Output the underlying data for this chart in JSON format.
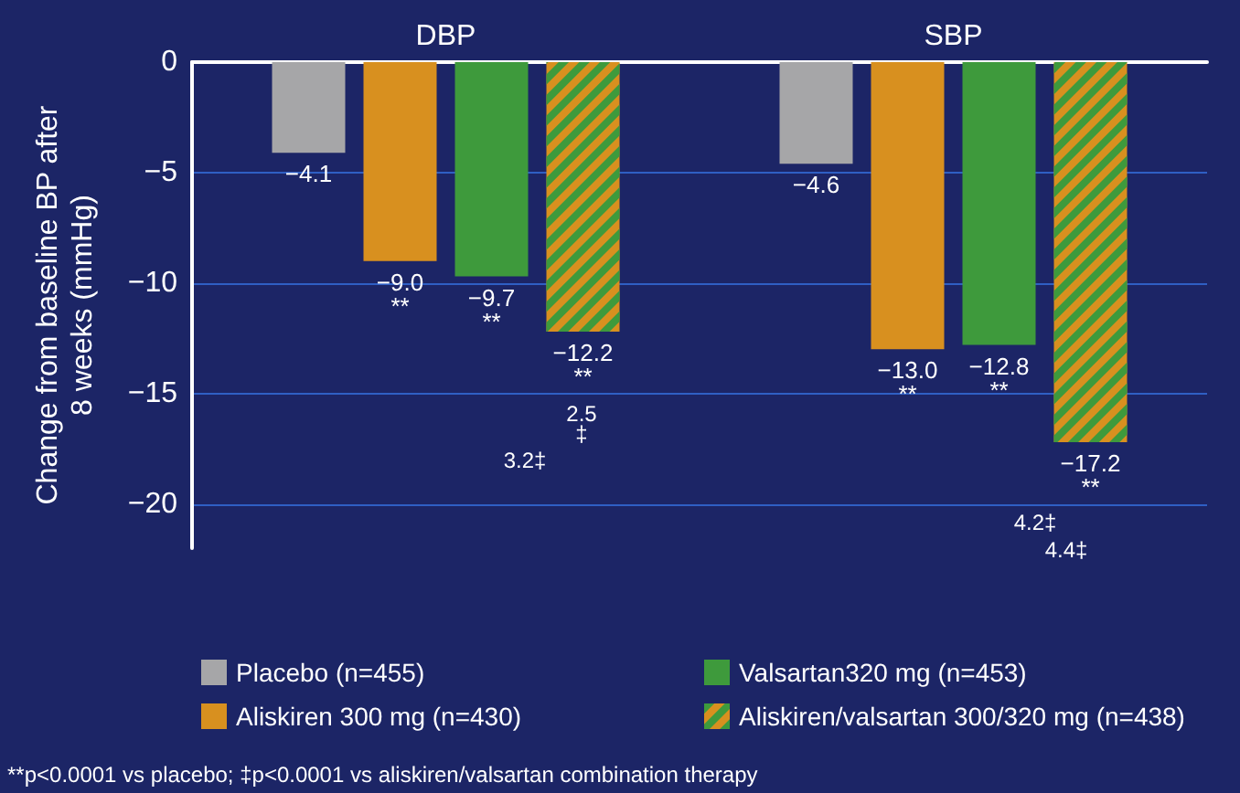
{
  "chart_data": {
    "type": "bar",
    "ylabel": "Change from baseline BP after\n8 weeks (mmHg)",
    "categories": [
      "DBP",
      "SBP"
    ],
    "series": [
      {
        "name": "Placebo (n=455)",
        "color": "#a6a6a8",
        "values": [
          -4.1,
          -4.6
        ],
        "value_labels": [
          "−4.1",
          "−4.6"
        ]
      },
      {
        "name": "Aliskiren 300 mg (n=430)",
        "color": "#d8901f",
        "values": [
          -9.0,
          -13.0
        ],
        "value_labels": [
          "−9.0\n**",
          "−13.0\n**"
        ]
      },
      {
        "name": "Valsartan320 mg (n=453)",
        "color": "#3e9a3c",
        "values": [
          -9.7,
          -12.8
        ],
        "value_labels": [
          "−9.7\n**",
          "−12.8\n**"
        ]
      },
      {
        "name": "Aliskiren/valsartan 300/320 mg (n=438)",
        "color": "#d8901f",
        "values": [
          -12.2,
          -17.2
        ],
        "value_labels": [
          "−12.2\n**",
          "−17.2\n**"
        ]
      }
    ],
    "ylim": [
      -22,
      0
    ],
    "yticks": [
      {
        "value": 0,
        "label": "0"
      },
      {
        "value": -5,
        "label": "−5"
      },
      {
        "value": -10,
        "label": "−10"
      },
      {
        "value": -15,
        "label": "−15"
      },
      {
        "value": -20,
        "label": "−20"
      }
    ],
    "grid": "y",
    "legend": "bottom",
    "annotations": [
      "2.5\n‡",
      "3.2‡",
      "4.2‡",
      "4.4‡",
      "**p<0.0001 vs placebo; ‡p<0.0001 vs aliskiren/valsartan combination therapy"
    ]
  }
}
